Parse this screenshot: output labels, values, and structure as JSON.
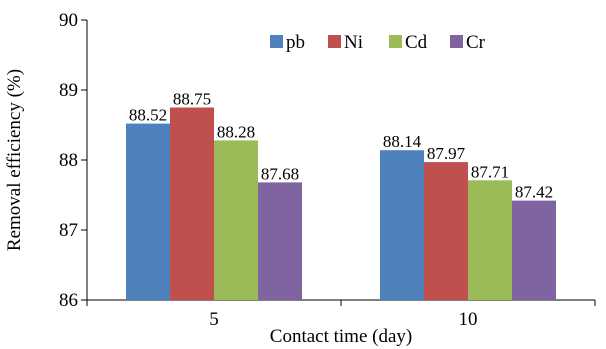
{
  "chart_data": {
    "type": "bar",
    "xlabel": "Contact time (day)",
    "ylabel": "Removal efficiency (%)",
    "ylim": [
      86,
      90
    ],
    "yticks": [
      "86",
      "87",
      "88",
      "89",
      "90"
    ],
    "categories": [
      "5",
      "10"
    ],
    "legend_position": "top-right",
    "grid": false,
    "series": [
      {
        "name": "pb",
        "color": "#4F81BD",
        "values": [
          88.52,
          88.14
        ],
        "labels": [
          "88.52",
          "88.14"
        ]
      },
      {
        "name": "Ni",
        "color": "#C0504D",
        "values": [
          88.75,
          87.97
        ],
        "labels": [
          "88.75",
          "87.97"
        ]
      },
      {
        "name": "Cd",
        "color": "#9BBB59",
        "values": [
          88.28,
          87.71
        ],
        "labels": [
          "88.28",
          "87.71"
        ]
      },
      {
        "name": "Cr",
        "color": "#8064A2",
        "values": [
          87.68,
          87.42
        ],
        "labels": [
          "87.68",
          "87.42"
        ]
      }
    ]
  }
}
